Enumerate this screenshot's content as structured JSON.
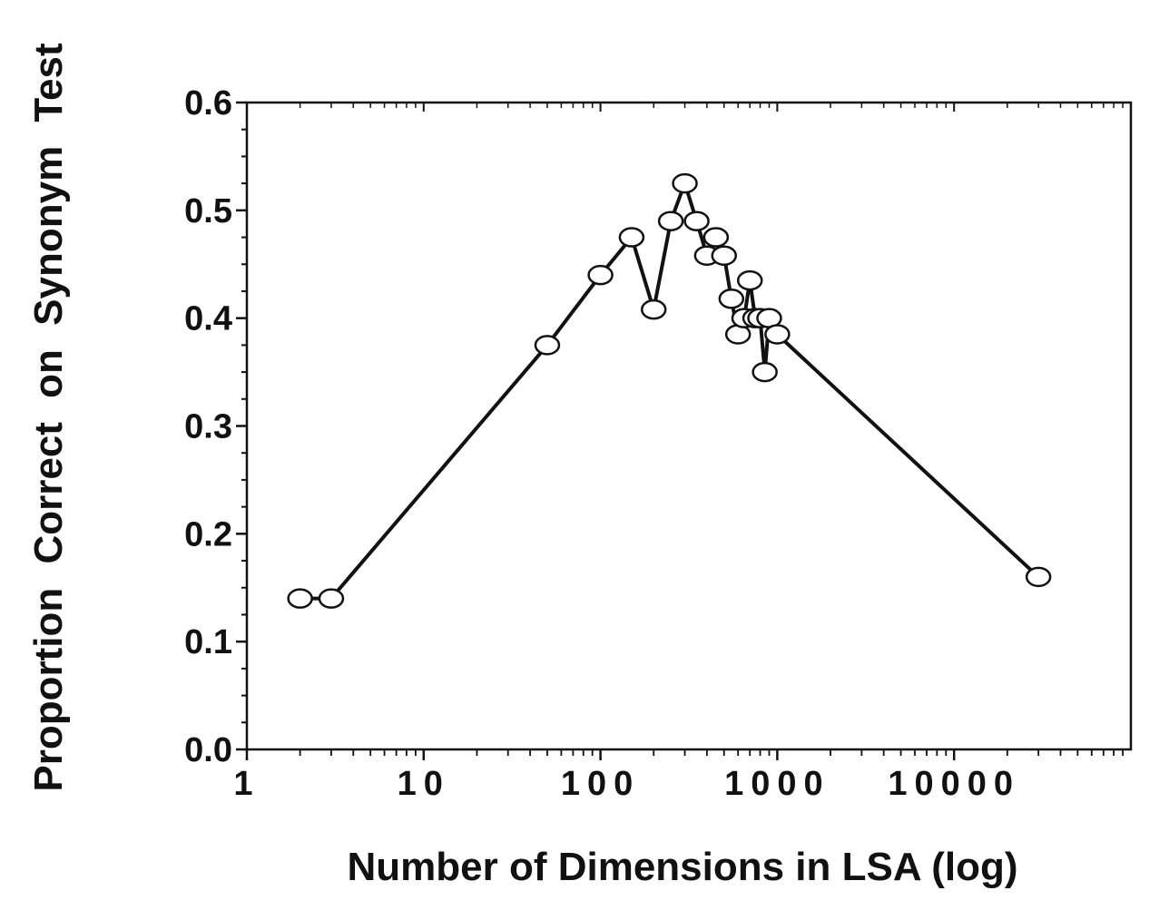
{
  "chart_data": {
    "type": "line",
    "xlabel": "Number of Dimensions in LSA (log)",
    "ylabel": "Proportion  Correct  on  Synonym  Test",
    "x_scale": "log",
    "xlim": [
      1,
      100000
    ],
    "ylim": [
      0.0,
      0.6
    ],
    "x_ticks": [
      1,
      10,
      100,
      1000,
      10000
    ],
    "x_tick_labels": [
      "1",
      "10",
      "100",
      "1000",
      "10000"
    ],
    "y_ticks": [
      0.0,
      0.1,
      0.2,
      0.3,
      0.4,
      0.5,
      0.6
    ],
    "y_tick_labels": [
      "0.0",
      "0.1",
      "0.2",
      "0.3",
      "0.4",
      "0.5",
      "0.6"
    ],
    "grid": false,
    "legend": "none",
    "marker": "open-circle",
    "line_color": "#111111",
    "series": [
      {
        "x": [
          2,
          3,
          50,
          100,
          150,
          200,
          250,
          300,
          350,
          400,
          450,
          500,
          550,
          600,
          650,
          700,
          750,
          800,
          850,
          900,
          1000,
          30000
        ],
        "y": [
          0.14,
          0.14,
          0.375,
          0.44,
          0.475,
          0.408,
          0.49,
          0.525,
          0.49,
          0.458,
          0.475,
          0.458,
          0.418,
          0.385,
          0.4,
          0.435,
          0.4,
          0.4,
          0.35,
          0.4,
          0.385,
          0.16
        ]
      }
    ]
  }
}
